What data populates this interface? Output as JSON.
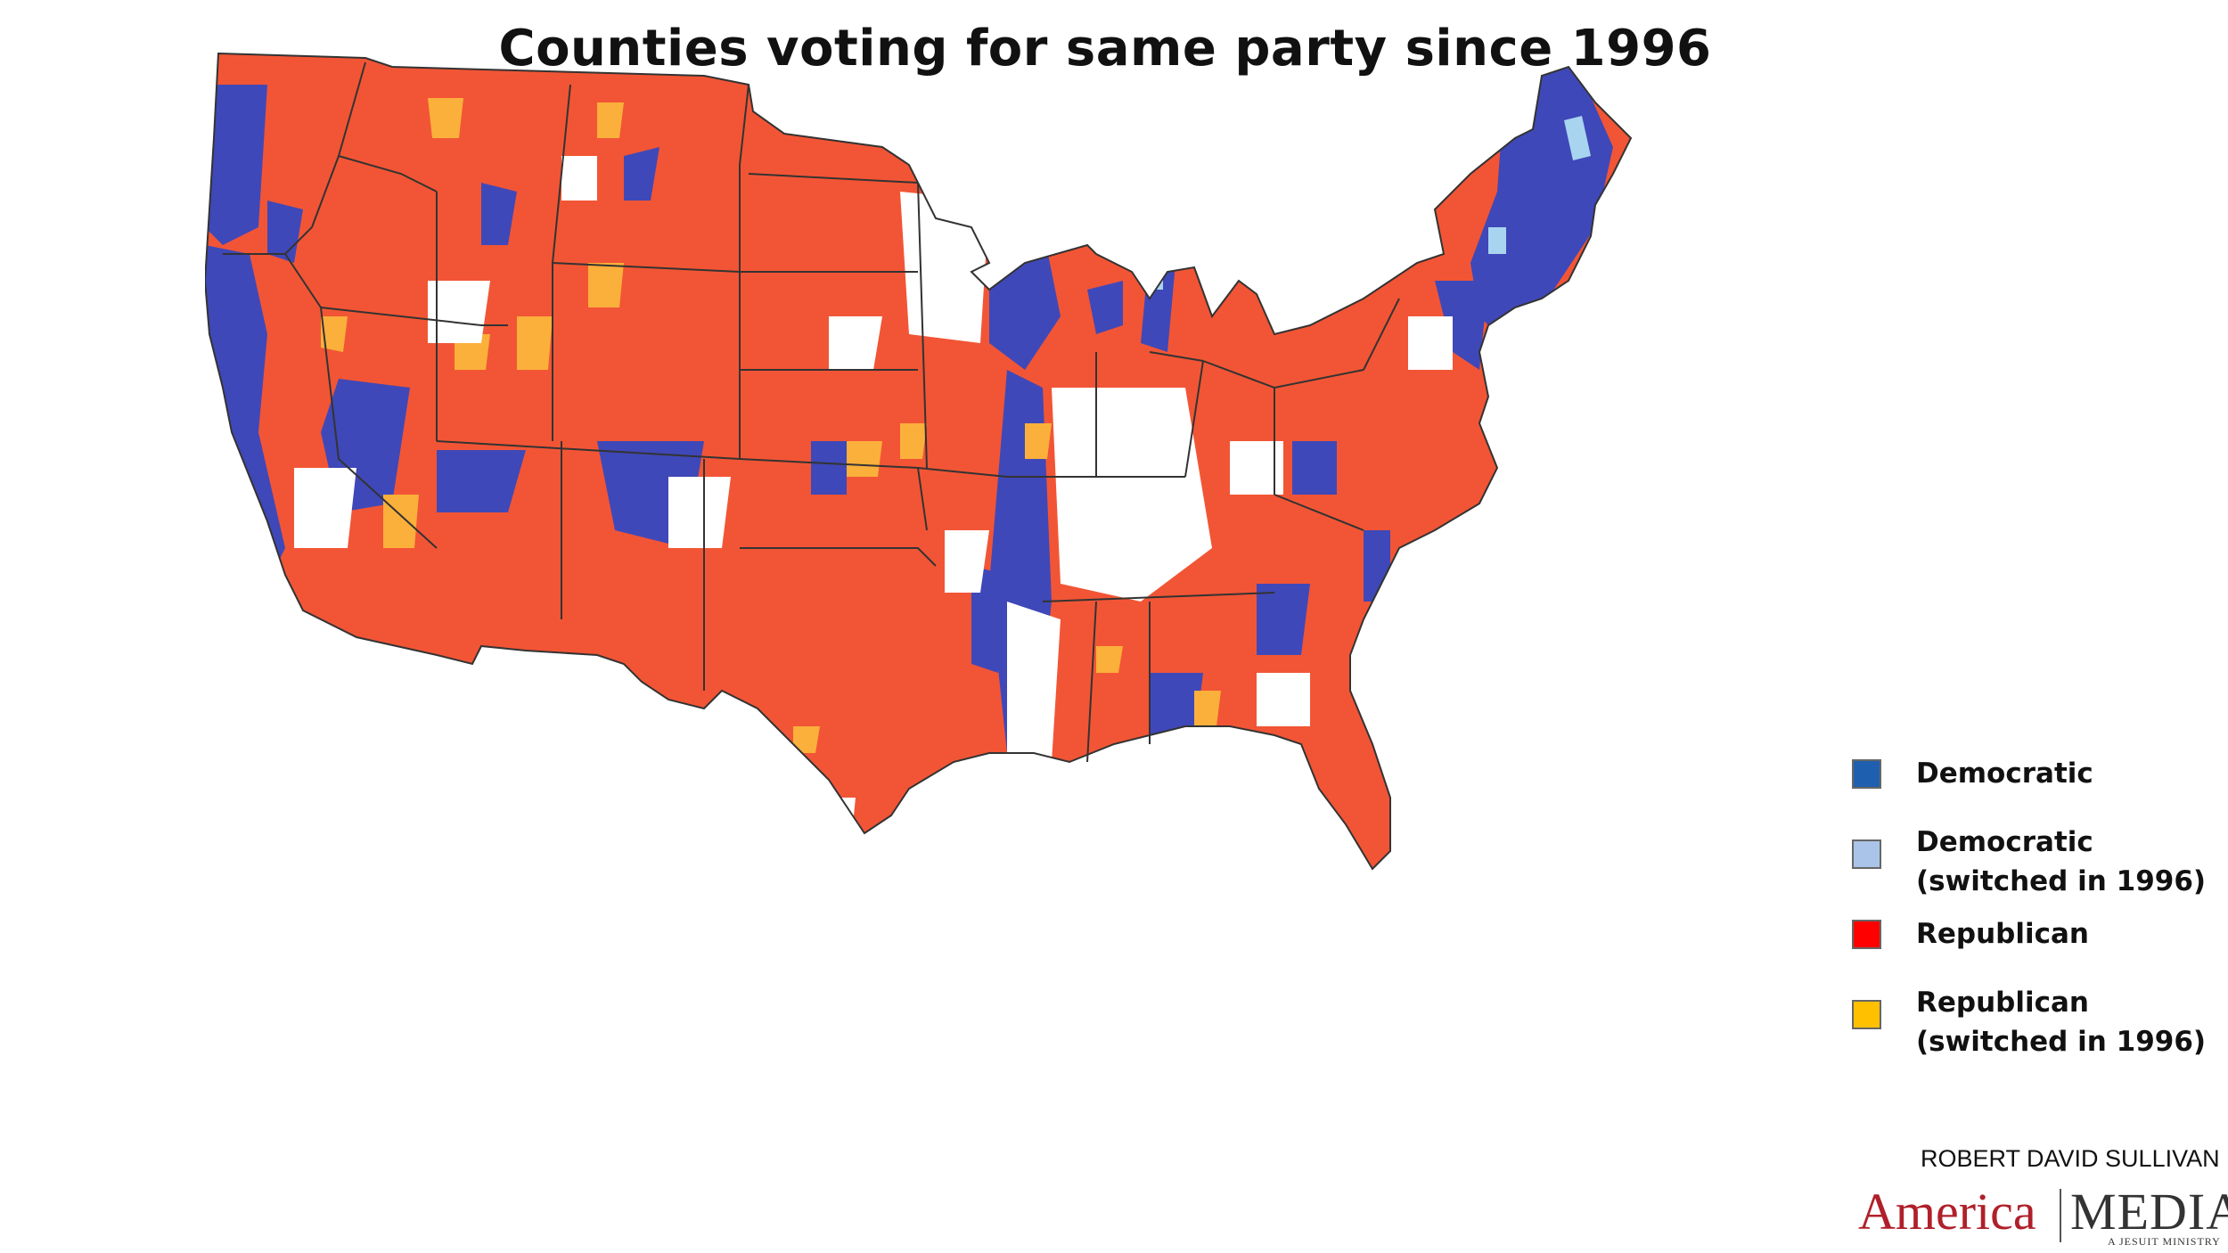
{
  "title": "Counties voting for same party since 1996",
  "legend": {
    "items": [
      {
        "label": "Democratic",
        "color": "#1f5fb0"
      },
      {
        "label": "Democratic (switched in 1996)",
        "color": "#a9c4e8"
      },
      {
        "label": "Republican",
        "color": "#ff0000"
      },
      {
        "label": "Republican (switched in 1996)",
        "color": "#ffc000"
      }
    ]
  },
  "map_colors": {
    "democratic": "#3f48b8",
    "democratic_switched": "#a9d4f0",
    "republican": "#f25535",
    "republican_switched": "#fbb03b",
    "other": "#ffffff",
    "border": "#333333"
  },
  "credit": "ROBERT DAVID SULLIVAN",
  "logo": {
    "left": "America",
    "right": "MEDIA",
    "sub": "A JESUIT MINISTRY"
  }
}
